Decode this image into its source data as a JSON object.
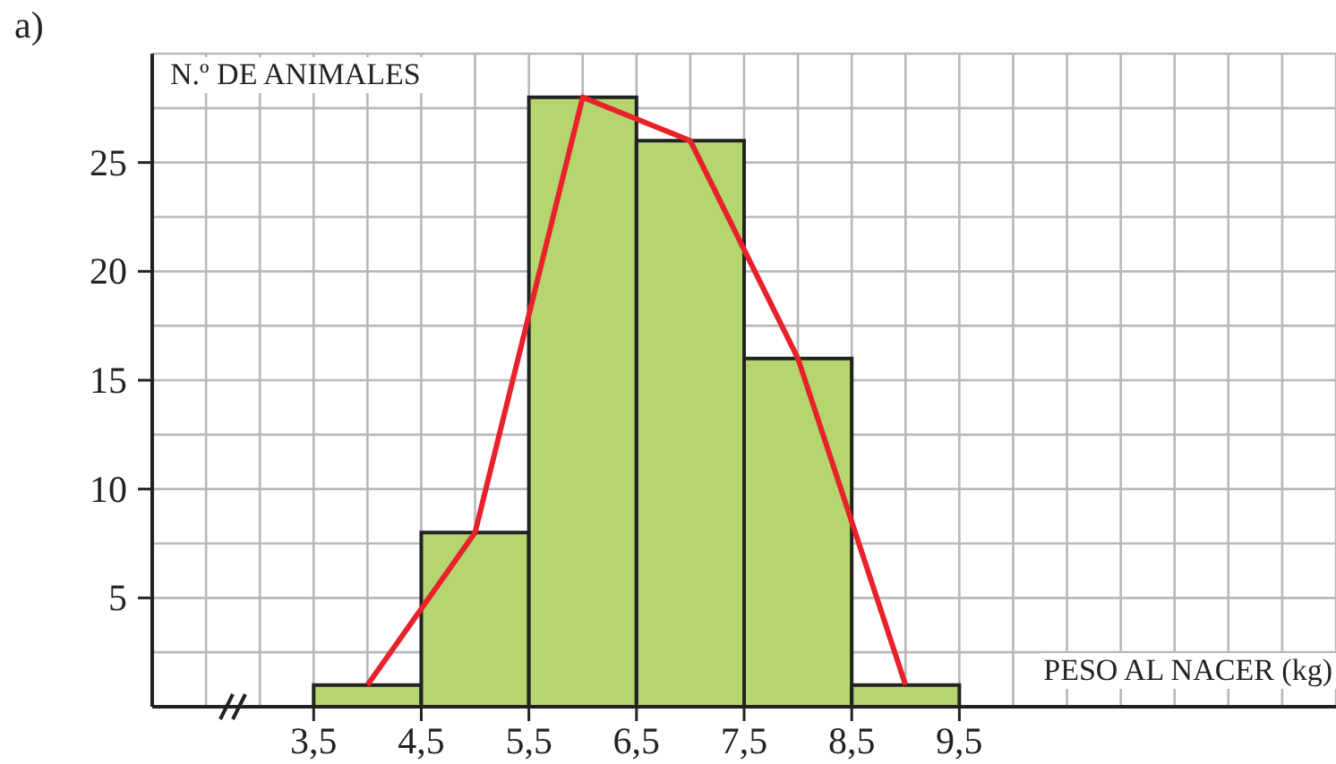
{
  "chart_data": {
    "type": "histogram",
    "xlabel": "PESO AL NACER (kg)",
    "ylabel": "N.º DE ANIMALES",
    "annotations": [
      "a)"
    ],
    "series": [
      {
        "bins": [
          3.5,
          4.5,
          5.5,
          6.5,
          7.5,
          8.5,
          9.5
        ],
        "values": [
          1,
          8,
          28,
          26,
          16,
          1
        ],
        "color": "#b5d56f"
      },
      {
        "type": "line",
        "x": [
          4,
          5,
          6,
          7,
          8,
          9
        ],
        "values": [
          1,
          8,
          28,
          26,
          16,
          1
        ],
        "color": "#e8212a"
      }
    ],
    "xlim": [
      2,
      13
    ],
    "ylim": [
      0,
      30
    ],
    "xticks": [
      {
        "value": 2.5,
        "label": null
      },
      {
        "value": 3,
        "label": null
      },
      {
        "value": 3.5,
        "label": "3,5"
      },
      {
        "value": 4,
        "label": null
      },
      {
        "value": 4.5,
        "label": "4,5"
      },
      {
        "value": 5,
        "label": null
      },
      {
        "value": 5.5,
        "label": "5,5"
      },
      {
        "value": 6,
        "label": null
      },
      {
        "value": 6.5,
        "label": "6,5"
      },
      {
        "value": 7,
        "label": null
      },
      {
        "value": 7.5,
        "label": "7,5"
      },
      {
        "value": 8,
        "label": null
      },
      {
        "value": 8.5,
        "label": "8,5"
      },
      {
        "value": 9,
        "label": null
      },
      {
        "value": 9.5,
        "label": "9,5"
      },
      {
        "value": 10,
        "label": null
      },
      {
        "value": 10.5,
        "label": null
      },
      {
        "value": 11,
        "label": null
      },
      {
        "value": 11.5,
        "label": null
      },
      {
        "value": 12,
        "label": null
      },
      {
        "value": 12.5,
        "label": null
      },
      {
        "value": 13,
        "label": null
      }
    ],
    "yticks": [
      {
        "value": 2.5,
        "label": null
      },
      5,
      {
        "value": 7.5,
        "label": null
      },
      10,
      {
        "value": 12.5,
        "label": null
      },
      15,
      {
        "value": 17.5,
        "label": null
      },
      20,
      {
        "value": 22.5,
        "label": null
      },
      25,
      {
        "value": 27.5,
        "label": null
      },
      {
        "value": 30,
        "label": null
      }
    ],
    "grid": true,
    "marker": "none"
  }
}
